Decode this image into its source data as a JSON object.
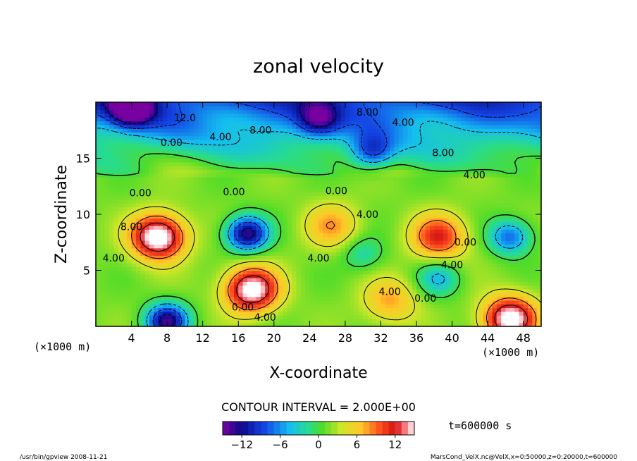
{
  "chart_data": {
    "type": "heatmap",
    "title": "zonal velocity",
    "xlabel": "X-coordinate",
    "ylabel": "Z-coordinate",
    "x_unit": "(×1000 m)",
    "y_unit": "(×1000 m)",
    "xlim": [
      0,
      50
    ],
    "ylim": [
      0,
      20
    ],
    "x_ticks": [
      4,
      8,
      12,
      16,
      20,
      24,
      28,
      32,
      36,
      40,
      44,
      48
    ],
    "y_ticks": [
      5,
      10,
      15
    ],
    "contour_interval_text": "CONTOUR INTERVAL = 2.000E+00",
    "time_text": "t=600000 s",
    "colorbar": {
      "range": [
        -15,
        15
      ],
      "ticks": [
        -12,
        -6,
        0,
        6,
        12
      ],
      "tick_labels": [
        "−12",
        "−6",
        "0",
        "6",
        "12"
      ]
    },
    "contour_labels": [
      {
        "text": "12.0",
        "x": 10,
        "y": 18.3
      },
      {
        "text": "4.00",
        "x": 14,
        "y": 16.6
      },
      {
        "text": "0.00",
        "x": 8.5,
        "y": 16.1
      },
      {
        "text": "8.00",
        "x": 18.5,
        "y": 17.2
      },
      {
        "text": "8.00",
        "x": 30.5,
        "y": 18.8
      },
      {
        "text": "4.00",
        "x": 34.5,
        "y": 17.9
      },
      {
        "text": "8.00",
        "x": 39,
        "y": 15.2
      },
      {
        "text": "4.00",
        "x": 42.5,
        "y": 13.2
      },
      {
        "text": "0.00",
        "x": 5,
        "y": 11.6
      },
      {
        "text": "0.00",
        "x": 15.5,
        "y": 11.7
      },
      {
        "text": "0.00",
        "x": 27,
        "y": 11.8
      },
      {
        "text": "4.00",
        "x": 30.5,
        "y": 9.7
      },
      {
        "text": "8.00",
        "x": 4,
        "y": 8.6
      },
      {
        "text": "4.00",
        "x": 2,
        "y": 5.8
      },
      {
        "text": "4.00",
        "x": 25,
        "y": 5.8
      },
      {
        "text": "4.00",
        "x": 33,
        "y": 2.8
      },
      {
        "text": "0.00",
        "x": 37,
        "y": 2.2
      },
      {
        "text": "0.00",
        "x": 16.5,
        "y": 1.4
      },
      {
        "text": "4.00",
        "x": 19,
        "y": 0.5
      },
      {
        "text": "4.00",
        "x": 40,
        "y": 5.2
      },
      {
        "text": "0.00",
        "x": 41.5,
        "y": 7.2
      }
    ],
    "features": [
      {
        "kind": "max",
        "x": 7,
        "y": 8,
        "value": 16
      },
      {
        "kind": "max",
        "x": 17.5,
        "y": 3.3,
        "value": 15
      },
      {
        "kind": "max",
        "x": 38.5,
        "y": 8,
        "value": 10
      },
      {
        "kind": "max",
        "x": 46.5,
        "y": 0.7,
        "value": 15
      },
      {
        "kind": "max",
        "x": 26.5,
        "y": 9,
        "value": 6
      },
      {
        "kind": "max",
        "x": 33,
        "y": 2.3,
        "value": 6
      },
      {
        "kind": "min",
        "x": 17,
        "y": 8.3,
        "value": -15
      },
      {
        "kind": "min",
        "x": 46.5,
        "y": 8,
        "value": -9
      },
      {
        "kind": "min",
        "x": 8,
        "y": 0.5,
        "value": -15
      },
      {
        "kind": "min",
        "x": 4,
        "y": 19.5,
        "value": -15
      },
      {
        "kind": "min",
        "x": 30,
        "y": 6.5,
        "value": -4
      },
      {
        "kind": "min",
        "x": 38.5,
        "y": 4.3,
        "value": -6
      },
      {
        "kind": "min",
        "x": 31,
        "y": 15.5,
        "value": -8
      },
      {
        "kind": "min",
        "x": 25,
        "y": 18.5,
        "value": -9
      }
    ]
  },
  "footer": {
    "left": "/usr/bin/gpview   2008-11-21",
    "right": "MarsCond_VelX.nc@VelX,x=0:50000,z=0:20000,t=600000"
  }
}
